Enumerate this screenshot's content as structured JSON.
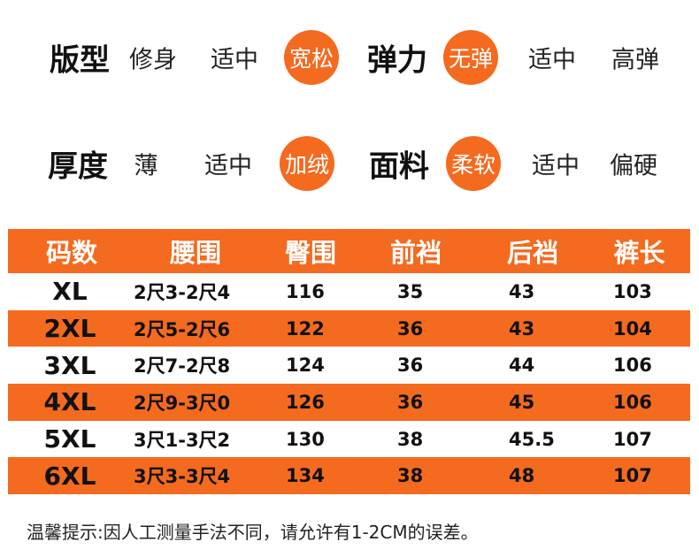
{
  "attributes": [
    {
      "title": "版型",
      "options": [
        "修身",
        "适中",
        "宽松"
      ],
      "selected": 2
    },
    {
      "title": "弹力",
      "options": [
        "无弹",
        "适中",
        "高弹"
      ],
      "selected": 0
    },
    {
      "title": "厚度",
      "options": [
        "薄",
        "适中",
        "加绒"
      ],
      "selected": 2
    },
    {
      "title": "面料",
      "options": [
        "柔软",
        "适中",
        "偏硬"
      ],
      "selected": 0
    }
  ],
  "colors": {
    "accent": "#f46a1f"
  },
  "table": {
    "headers": [
      "码数",
      "腰围",
      "臀围",
      "前裆",
      "后裆",
      "裤长"
    ],
    "rows": [
      [
        "XL",
        "2尺3-2尺4",
        "116",
        "35",
        "43",
        "103"
      ],
      [
        "2XL",
        "2尺5-2尺6",
        "122",
        "36",
        "43",
        "104"
      ],
      [
        "3XL",
        "2尺7-2尺8",
        "124",
        "36",
        "44",
        "106"
      ],
      [
        "4XL",
        "2尺9-3尺0",
        "126",
        "36",
        "45",
        "106"
      ],
      [
        "5XL",
        "3尺1-3尺2",
        "130",
        "38",
        "45.5",
        "107"
      ],
      [
        "6XL",
        "3尺3-3尺4",
        "134",
        "38",
        "48",
        "107"
      ]
    ]
  },
  "note": "温馨提示:因人工测量手法不同，请允许有1-2CM的误差。"
}
